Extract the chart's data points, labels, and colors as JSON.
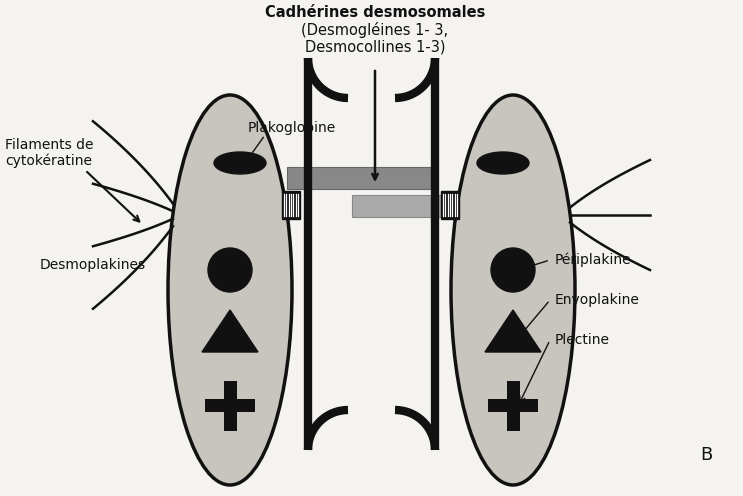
{
  "bg_color": "#f5f3f0",
  "cell_color": "#c8c5be",
  "cell_border_color": "#111111",
  "dark_color": "#111111",
  "gray_bar_dark": "#888888",
  "gray_bar_light": "#aaaaaa",
  "title_top": "Cadhérines desmosomales",
  "title_sub1": "(Desmogléines 1- 3,",
  "title_sub2": "Desmocollines 1-3)",
  "label_plakoglobine": "Plakoglobine",
  "label_filaments": "Filaments de\ncytokératine",
  "label_desmoplakines": "Desmoplakines",
  "label_periplakine": "Périplakine",
  "label_envoplakine": "Envoplakine",
  "label_plectine": "Plectine",
  "label_B": "B",
  "figw": 7.43,
  "figh": 4.96,
  "dpi": 100
}
